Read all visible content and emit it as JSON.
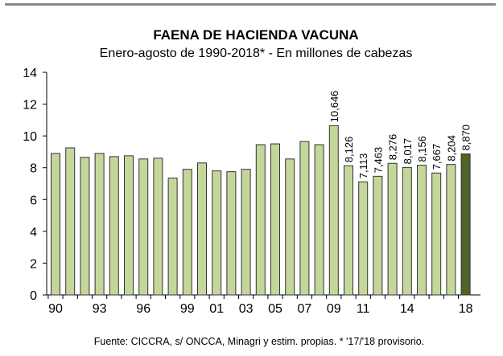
{
  "chart_data": {
    "type": "bar",
    "title": "FAENA DE HACIENDA VACUNA",
    "subtitle": "Enero-agosto de 1990-2018* - En millones de cabezas",
    "source": "Fuente: CICCRA, s/ ONCCA, Minagri y estim. propias. * '17/'18 provisorio.",
    "ylim": [
      0,
      14
    ],
    "yticks": [
      "0",
      "2",
      "4",
      "6",
      "8",
      "10",
      "12",
      "14"
    ],
    "years": [
      1990,
      1991,
      1992,
      1993,
      1994,
      1995,
      1996,
      1997,
      1998,
      1999,
      2000,
      2001,
      2002,
      2003,
      2004,
      2005,
      2006,
      2007,
      2008,
      2009,
      2010,
      2011,
      2012,
      2013,
      2014,
      2015,
      2016,
      2017,
      2018
    ],
    "values": [
      8.9,
      9.25,
      8.65,
      8.9,
      8.7,
      8.75,
      8.55,
      8.6,
      7.35,
      7.9,
      8.3,
      7.8,
      7.75,
      7.9,
      9.45,
      9.5,
      8.55,
      9.65,
      9.45,
      10.646,
      8.126,
      7.113,
      7.463,
      8.276,
      8.017,
      8.156,
      7.667,
      8.204,
      8.87
    ],
    "data_labels": {
      "2009": "10,646",
      "2010": "8,126",
      "2011": "7,113",
      "2012": "7,463",
      "2013": "8,276",
      "2014": "8,017",
      "2015": "8,156",
      "2016": "7,667",
      "2017": "8,204",
      "2018": "8,870"
    },
    "xtick_labels": {
      "1990": "90",
      "1993": "93",
      "1996": "96",
      "1999": "99",
      "2001": "01",
      "2003": "03",
      "2005": "05",
      "2007": "07",
      "2009": "09",
      "2011": "11",
      "2014": "14",
      "2018": "18"
    },
    "colors": {
      "bar": "#c4d79b",
      "highlight": "#4f6228",
      "edge": "#333333"
    }
  }
}
